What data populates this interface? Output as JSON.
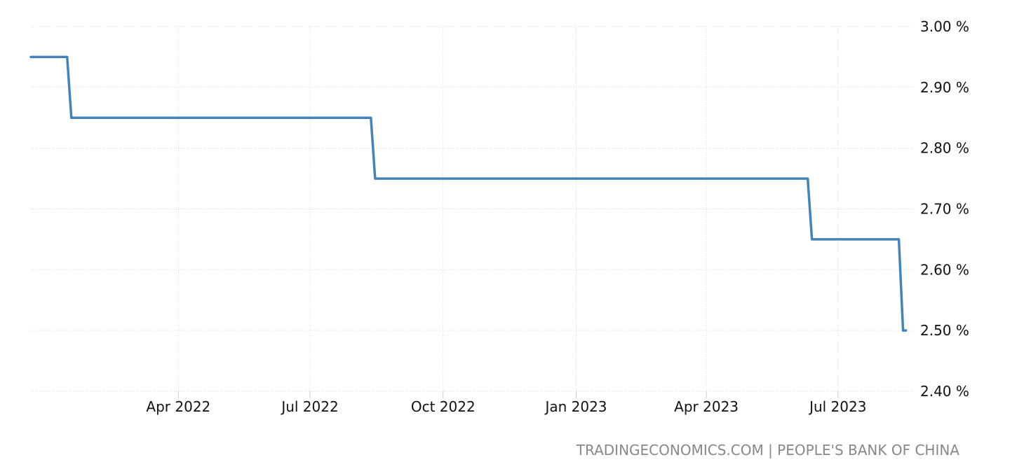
{
  "source": "TRADINGECONOMICS.COM | PEOPLE'S BANK OF CHINA",
  "chart_data": {
    "type": "line",
    "title": "",
    "xlabel": "",
    "ylabel": "",
    "step": true,
    "grid": true,
    "legend": "none",
    "color": "#4682b4",
    "ylim": [
      2.4,
      3.0
    ],
    "xlim": [
      "2021-12-20",
      "2023-08-22"
    ],
    "y_ticks": [
      3.0,
      2.9,
      2.8,
      2.7,
      2.6,
      2.5,
      2.4
    ],
    "y_tick_labels": [
      "3.00 %",
      "2.90 %",
      "2.80 %",
      "2.70 %",
      "2.60 %",
      "2.50 %",
      "2.40 %"
    ],
    "x_ticks": [
      "2022-04-01",
      "2022-07-01",
      "2022-10-01",
      "2023-01-01",
      "2023-04-01",
      "2023-07-01"
    ],
    "x_tick_labels": [
      "Apr 2022",
      "Jul 2022",
      "Oct 2022",
      "Jan 2023",
      "Apr 2023",
      "Jul 2023"
    ],
    "series": [
      {
        "points": [
          {
            "x": "2021-12-20",
            "y": 2.95
          },
          {
            "x": "2022-01-17",
            "y": 2.85
          },
          {
            "x": "2022-08-15",
            "y": 2.75
          },
          {
            "x": "2023-06-13",
            "y": 2.65
          },
          {
            "x": "2023-08-15",
            "y": 2.5
          },
          {
            "x": "2023-08-17",
            "y": 2.5
          }
        ]
      }
    ]
  }
}
